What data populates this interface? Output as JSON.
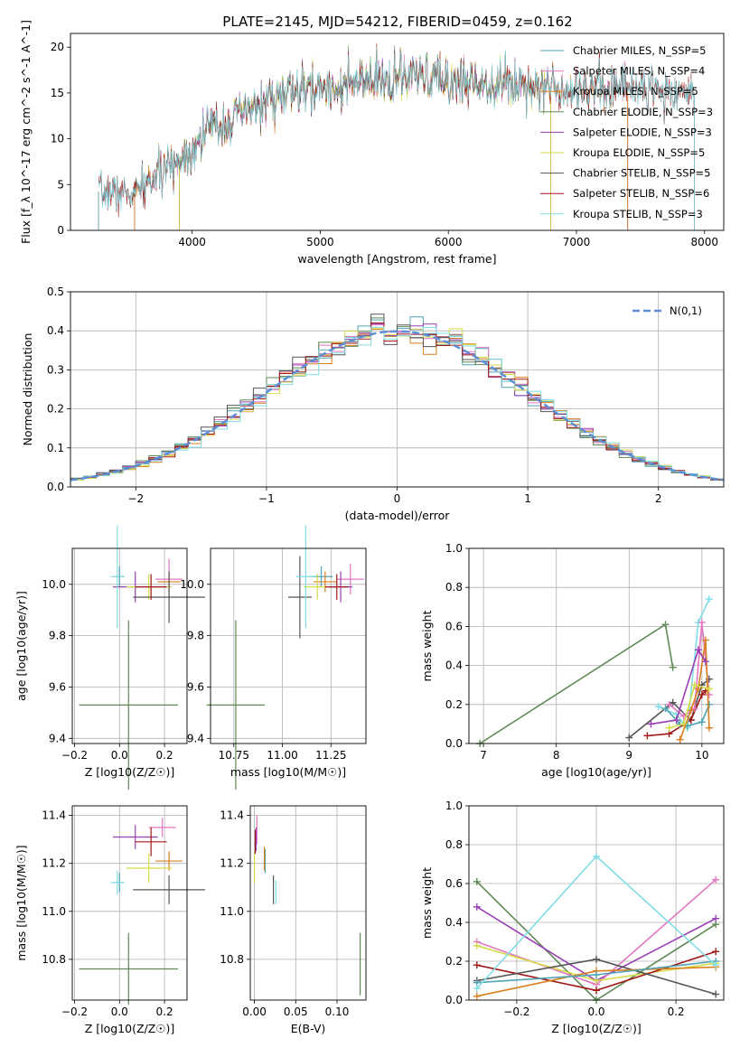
{
  "title": "PLATE=2145, MJD=54212, FIBERID=0459, z=0.162",
  "colors": {
    "Chabrier MILES": "#4fa4b4",
    "Salpeter MILES": "#e377c2",
    "Kroupa MILES": "#d97f1e",
    "Chabrier ELODIE": "#5f8a55",
    "Salpeter ELODIE": "#9a3fb5",
    "Kroupa ELODIE": "#d4dc48",
    "Chabrier STELIB": "#555555",
    "Salpeter STELIB": "#a01818",
    "Kroupa STELIB": "#80dde6",
    "normal": "#5b8ed6"
  },
  "chart_data": [
    {
      "type": "line",
      "name": "spectrum",
      "xlabel": "wavelength [Angstrom, rest frame]",
      "ylabel": "Flux [f_λ 10^-17 erg cm^-2 s^-1 A^-1]",
      "xlim": [
        3050,
        8150
      ],
      "ylim": [
        0,
        21.5
      ],
      "xticks": [
        "4000",
        "5000",
        "6000",
        "7000",
        "8000"
      ],
      "yticks": [
        "0",
        "5",
        "10",
        "15",
        "20"
      ],
      "legend": "top-right",
      "series": [
        {
          "name": "Chabrier MILES, N_SSP=5",
          "x0": 3550,
          "x1": 7400
        },
        {
          "name": "Salpeter MILES, N_SSP=4",
          "x0": 3550,
          "x1": 7400
        },
        {
          "name": "Kroupa MILES, N_SSP=5",
          "x0": 3550,
          "x1": 7400
        },
        {
          "name": "Chabrier ELODIE, N_SSP=3",
          "x0": 3900,
          "x1": 6800
        },
        {
          "name": "Salpeter ELODIE, N_SSP=3",
          "x0": 3900,
          "x1": 6800
        },
        {
          "name": "Kroupa ELODIE, N_SSP=5",
          "x0": 3900,
          "x1": 6800
        },
        {
          "name": "Chabrier STELIB, N_SSP=5",
          "x0": 3270,
          "x1": 7920
        },
        {
          "name": "Salpeter STELIB, N_SSP=6",
          "x0": 3270,
          "x1": 7920
        },
        {
          "name": "Kroupa STELIB, N_SSP=3",
          "x0": 3270,
          "x1": 7920
        }
      ],
      "continuum": {
        "x": [
          3270,
          3550,
          3700,
          3850,
          4000,
          4100,
          4300,
          4500,
          4700,
          5000,
          5200,
          5500,
          5800,
          6000,
          6300,
          6600,
          7000,
          7400,
          7800,
          7920
        ],
        "y": [
          4.2,
          4.0,
          5.6,
          7.2,
          8.8,
          11.0,
          12.0,
          13.5,
          14.8,
          15.5,
          15.8,
          16.3,
          16.8,
          16.2,
          16.2,
          16.0,
          15.5,
          15.8,
          15.2,
          15.0
        ]
      }
    },
    {
      "type": "bar",
      "name": "residual histogram",
      "xlabel": "(data-model)/error",
      "ylabel": "Normed distribution",
      "xlim": [
        -2.5,
        2.5
      ],
      "ylim": [
        0,
        0.5
      ],
      "xticks": [
        "−2",
        "−1",
        "0",
        "1",
        "2"
      ],
      "yticks": [
        "0.0",
        "0.1",
        "0.2",
        "0.3",
        "0.4",
        "0.5"
      ],
      "legend": "top-right",
      "legend_label": "N(0,1)",
      "bin_width": 0.1
    },
    {
      "type": "scatter",
      "name": "age vs metallicity",
      "xlabel": "Z [log10(Z/Z☉)]",
      "ylabel": "age  [log10(age/yr)]",
      "xlim": [
        -0.21,
        0.3
      ],
      "ylim": [
        9.38,
        10.14
      ],
      "xticks": [
        "−0.2",
        "0.0",
        "0.2"
      ],
      "yticks": [
        "9.4",
        "9.6",
        "9.8",
        "10.0"
      ],
      "points": [
        {
          "model": "Chabrier MILES",
          "x": 0.0,
          "y": 10.03,
          "xerr": 0.02,
          "yerr": 0.04
        },
        {
          "model": "Salpeter MILES",
          "x": 0.22,
          "y": 10.02,
          "xerr": 0.06,
          "yerr": 0.08
        },
        {
          "model": "Kroupa MILES",
          "x": 0.22,
          "y": 10.01,
          "xerr": 0.05,
          "yerr": 0.04
        },
        {
          "model": "Chabrier ELODIE",
          "x": 0.04,
          "y": 9.53,
          "xerr": 0.22,
          "yerr": 0.33
        },
        {
          "model": "Salpeter ELODIE",
          "x": 0.07,
          "y": 9.99,
          "xerr": 0.1,
          "yerr": 0.06
        },
        {
          "model": "Kroupa ELODIE",
          "x": 0.13,
          "y": 9.99,
          "xerr": 0.1,
          "yerr": 0.05
        },
        {
          "model": "Chabrier STELIB",
          "x": 0.22,
          "y": 9.95,
          "xerr": 0.16,
          "yerr": 0.1
        },
        {
          "model": "Salpeter STELIB",
          "x": 0.14,
          "y": 9.99,
          "xerr": 0.07,
          "yerr": 0.05
        },
        {
          "model": "Kroupa STELIB",
          "x": -0.01,
          "y": 10.03,
          "xerr": 0.03,
          "yerr": 0.2
        }
      ]
    },
    {
      "type": "scatter",
      "name": "age vs mass",
      "xlabel": "mass [log10(M/M☉)]",
      "ylabel": "",
      "xlim": [
        10.63,
        11.43
      ],
      "ylim": [
        9.38,
        10.14
      ],
      "xticks": [
        "10.75",
        "11.00",
        "11.25"
      ],
      "yticks": [
        "9.4",
        "9.6",
        "9.8",
        "10.0"
      ],
      "points": [
        {
          "model": "Chabrier MILES",
          "x": 11.2,
          "y": 10.03,
          "xerr": 0.06,
          "yerr": 0.04
        },
        {
          "model": "Salpeter MILES",
          "x": 11.35,
          "y": 10.02,
          "xerr": 0.07,
          "yerr": 0.06
        },
        {
          "model": "Kroupa MILES",
          "x": 11.22,
          "y": 10.01,
          "xerr": 0.06,
          "yerr": 0.04
        },
        {
          "model": "Chabrier ELODIE",
          "x": 10.76,
          "y": 9.53,
          "xerr": 0.15,
          "yerr": 0.33
        },
        {
          "model": "Salpeter ELODIE",
          "x": 11.3,
          "y": 9.99,
          "xerr": 0.06,
          "yerr": 0.06
        },
        {
          "model": "Kroupa ELODIE",
          "x": 11.18,
          "y": 9.99,
          "xerr": 0.07,
          "yerr": 0.05
        },
        {
          "model": "Chabrier STELIB",
          "x": 11.09,
          "y": 9.95,
          "xerr": 0.06,
          "yerr": 0.16
        },
        {
          "model": "Salpeter STELIB",
          "x": 11.28,
          "y": 9.99,
          "xerr": 0.06,
          "yerr": 0.05
        },
        {
          "model": "Kroupa STELIB",
          "x": 11.12,
          "y": 10.03,
          "xerr": 0.05,
          "yerr": 0.2
        }
      ]
    },
    {
      "type": "line",
      "name": "mass weight vs age",
      "xlabel": "age  [log10(age/yr)]",
      "ylabel": "mass weight",
      "xlim": [
        6.8,
        10.3
      ],
      "ylim": [
        0,
        1.0
      ],
      "xticks": [
        "7",
        "8",
        "9",
        "10"
      ],
      "yticks": [
        "0.0",
        "0.2",
        "0.4",
        "0.6",
        "0.8",
        "1.0"
      ],
      "series": [
        {
          "model": "Chabrier ELODIE",
          "x": [
            6.95,
            9.5,
            9.6
          ],
          "y": [
            0.0,
            0.61,
            0.39
          ]
        },
        {
          "model": "Chabrier STELIB",
          "x": [
            9.0,
            9.6,
            9.85,
            10.0,
            10.1
          ],
          "y": [
            0.03,
            0.21,
            0.12,
            0.3,
            0.33
          ]
        },
        {
          "model": "Salpeter STELIB",
          "x": [
            9.25,
            9.55,
            9.85,
            10.0,
            10.05
          ],
          "y": [
            0.04,
            0.05,
            0.12,
            0.25,
            0.27
          ]
        },
        {
          "model": "Kroupa STELIB",
          "x": [
            9.4,
            9.65,
            9.8,
            9.95,
            10.1
          ],
          "y": [
            0.19,
            0.15,
            0.08,
            0.62,
            0.74
          ]
        },
        {
          "model": "Chabrier MILES",
          "x": [
            9.5,
            9.7,
            9.8,
            10.0,
            10.1
          ],
          "y": [
            0.18,
            0.1,
            0.09,
            0.11,
            0.2
          ]
        },
        {
          "model": "Salpeter MILES",
          "x": [
            9.55,
            9.75,
            9.9,
            10.0,
            10.1
          ],
          "y": [
            0.2,
            0.14,
            0.18,
            0.62,
            0.25
          ]
        },
        {
          "model": "Kroupa MILES",
          "x": [
            9.7,
            9.85,
            9.95,
            10.05,
            10.1
          ],
          "y": [
            0.02,
            0.17,
            0.28,
            0.53,
            0.08
          ]
        },
        {
          "model": "Salpeter ELODIE",
          "x": [
            9.3,
            9.65,
            9.95,
            10.05
          ],
          "y": [
            0.1,
            0.12,
            0.48,
            0.42
          ]
        },
        {
          "model": "Kroupa ELODIE",
          "x": [
            9.55,
            9.75,
            9.9,
            10.1
          ],
          "y": [
            0.08,
            0.1,
            0.3,
            0.28
          ]
        }
      ]
    },
    {
      "type": "scatter",
      "name": "mass vs metallicity",
      "xlabel": "Z [log10(Z/Z☉)]",
      "ylabel": "mass [log10(M/M☉)]",
      "xlim": [
        -0.21,
        0.3
      ],
      "ylim": [
        10.63,
        11.44
      ],
      "xticks": [
        "−0.2",
        "0.0",
        "0.2"
      ],
      "yticks": [
        "10.8",
        "11.0",
        "11.2",
        "11.4"
      ],
      "points": [
        {
          "model": "Chabrier MILES",
          "x": 0.0,
          "y": 11.12,
          "xerr": 0.02,
          "yerr": 0.04
        },
        {
          "model": "Salpeter MILES",
          "x": 0.19,
          "y": 11.35,
          "xerr": 0.06,
          "yerr": 0.04
        },
        {
          "model": "Kroupa MILES",
          "x": 0.22,
          "y": 11.21,
          "xerr": 0.06,
          "yerr": 0.04
        },
        {
          "model": "Chabrier ELODIE",
          "x": 0.04,
          "y": 10.76,
          "xerr": 0.22,
          "yerr": 0.15
        },
        {
          "model": "Salpeter ELODIE",
          "x": 0.07,
          "y": 11.31,
          "xerr": 0.1,
          "yerr": 0.05
        },
        {
          "model": "Kroupa ELODIE",
          "x": 0.13,
          "y": 11.18,
          "xerr": 0.1,
          "yerr": 0.06
        },
        {
          "model": "Chabrier STELIB",
          "x": 0.22,
          "y": 11.09,
          "xerr": 0.16,
          "yerr": 0.06
        },
        {
          "model": "Salpeter STELIB",
          "x": 0.14,
          "y": 11.29,
          "xerr": 0.07,
          "yerr": 0.06
        },
        {
          "model": "Kroupa STELIB",
          "x": -0.01,
          "y": 11.12,
          "xerr": 0.03,
          "yerr": 0.05
        }
      ]
    },
    {
      "type": "scatter",
      "name": "mass vs extinction",
      "xlabel": "E(B-V)",
      "ylabel": "",
      "xlim": [
        -0.005,
        0.135
      ],
      "ylim": [
        10.63,
        11.44
      ],
      "xticks": [
        "0.00",
        "0.05",
        "0.10"
      ],
      "yticks": [
        "10.8",
        "11.0",
        "11.2",
        "11.4"
      ],
      "points": [
        {
          "model": "Chabrier MILES",
          "x": 0.013,
          "y": 11.21,
          "xerr": 0.0,
          "yerr": 0.05
        },
        {
          "model": "Salpeter MILES",
          "x": 0.003,
          "y": 11.34,
          "xerr": 0.0,
          "yerr": 0.06
        },
        {
          "model": "Kroupa MILES",
          "x": 0.012,
          "y": 11.22,
          "xerr": 0.0,
          "yerr": 0.05
        },
        {
          "model": "Chabrier ELODIE",
          "x": 0.128,
          "y": 10.78,
          "xerr": 0.0,
          "yerr": 0.13
        },
        {
          "model": "Salpeter ELODIE",
          "x": 0.002,
          "y": 11.3,
          "xerr": 0.0,
          "yerr": 0.05
        },
        {
          "model": "Kroupa ELODIE",
          "x": 0.0,
          "y": 11.18,
          "xerr": 0.0,
          "yerr": 0.06
        },
        {
          "model": "Chabrier STELIB",
          "x": 0.023,
          "y": 11.09,
          "xerr": 0.0,
          "yerr": 0.06
        },
        {
          "model": "Salpeter STELIB",
          "x": 0.001,
          "y": 11.29,
          "xerr": 0.0,
          "yerr": 0.05
        },
        {
          "model": "Kroupa STELIB",
          "x": 0.026,
          "y": 11.08,
          "xerr": 0.0,
          "yerr": 0.05
        }
      ]
    },
    {
      "type": "line",
      "name": "mass weight vs metallicity",
      "xlabel": "Z [log10(Z/Z☉)]",
      "ylabel": "mass weight",
      "xlim": [
        -0.32,
        0.32
      ],
      "ylim": [
        0,
        1.0
      ],
      "xticks": [
        "−0.2",
        "0.0",
        "0.2"
      ],
      "yticks": [
        "0.0",
        "0.2",
        "0.4",
        "0.6",
        "0.8",
        "1.0"
      ],
      "series": [
        {
          "model": "Chabrier ELODIE",
          "x": [
            -0.3,
            0.0,
            0.3
          ],
          "y": [
            0.61,
            0.0,
            0.39
          ]
        },
        {
          "model": "Salpeter ELODIE",
          "x": [
            -0.3,
            0.0,
            0.3
          ],
          "y": [
            0.48,
            0.1,
            0.42
          ]
        },
        {
          "model": "Salpeter MILES",
          "x": [
            -0.3,
            0.0,
            0.3
          ],
          "y": [
            0.3,
            0.08,
            0.62
          ]
        },
        {
          "model": "Kroupa ELODIE",
          "x": [
            -0.3,
            0.0,
            0.3
          ],
          "y": [
            0.28,
            0.1,
            0.19
          ]
        },
        {
          "model": "Salpeter STELIB",
          "x": [
            -0.3,
            0.0,
            0.3
          ],
          "y": [
            0.18,
            0.05,
            0.25
          ]
        },
        {
          "model": "Chabrier STELIB",
          "x": [
            -0.3,
            0.0,
            0.3
          ],
          "y": [
            0.1,
            0.21,
            0.03
          ]
        },
        {
          "model": "Kroupa MILES",
          "x": [
            -0.3,
            0.0,
            0.3
          ],
          "y": [
            0.02,
            0.15,
            0.17
          ]
        },
        {
          "model": "Chabrier MILES",
          "x": [
            -0.3,
            0.0,
            0.3
          ],
          "y": [
            0.09,
            0.13,
            0.2
          ]
        },
        {
          "model": "Kroupa STELIB",
          "x": [
            -0.3,
            0.0,
            0.3
          ],
          "y": [
            0.06,
            0.74,
            0.18
          ]
        }
      ]
    }
  ]
}
